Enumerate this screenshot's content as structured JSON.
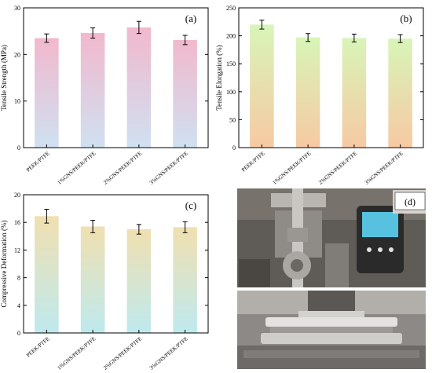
{
  "chart_data": [
    {
      "id": "a",
      "type": "bar",
      "panel_label": "(a)",
      "ylabel": "Tensile Strength (MPa)",
      "categories": [
        "PEEK/PTFE",
        "1%GNS/PEEK/PTFE",
        "2%GNS/PEEK/PTFE",
        "3%GNS/PEEK/PTFE"
      ],
      "values": [
        23.5,
        24.6,
        25.8,
        23.1
      ],
      "errors": [
        0.9,
        1.1,
        1.3,
        1.0
      ],
      "ylim": [
        0,
        30
      ],
      "yticks": [
        0,
        10,
        20,
        30
      ],
      "gradient": [
        "#f2b8cd",
        "#cfe1f1"
      ]
    },
    {
      "id": "b",
      "type": "bar",
      "panel_label": "(b)",
      "ylabel": "Tensile Elongation (%)",
      "categories": [
        "PEEK/PTFE",
        "1%GNS/PEEK/PTFE",
        "2%GNS/PEEK/PTFE",
        "3%GNS/PEEK/PTFE"
      ],
      "values": [
        220,
        197,
        196,
        195
      ],
      "errors": [
        8,
        7,
        7,
        7
      ],
      "ylim": [
        0,
        250
      ],
      "yticks": [
        0,
        50,
        100,
        150,
        200,
        250
      ],
      "gradient": [
        "#d8f5b8",
        "#f7c9a3"
      ]
    },
    {
      "id": "c",
      "type": "bar",
      "panel_label": "(c)",
      "ylabel": "Compressive Deformation (%)",
      "categories": [
        "PEEK/PTFE",
        "1%GNS/PEEK/PTFE",
        "2%GNS/PEEK/PTFE",
        "3%GNS/PEEK/PTFE"
      ],
      "values": [
        16.9,
        15.4,
        15.0,
        15.3
      ],
      "errors": [
        1.0,
        0.9,
        0.7,
        0.8
      ],
      "ylim": [
        0,
        20
      ],
      "yticks": [
        0,
        4,
        8,
        12,
        16,
        20
      ],
      "gradient": [
        "#f0e0b0",
        "#bfe9ee"
      ]
    }
  ],
  "photo_panel": {
    "label": "(d)"
  },
  "colors": {
    "axis": "#000000",
    "photo_top_bg": "#6e6a65",
    "photo_bottom_bg": "#8a8784"
  }
}
